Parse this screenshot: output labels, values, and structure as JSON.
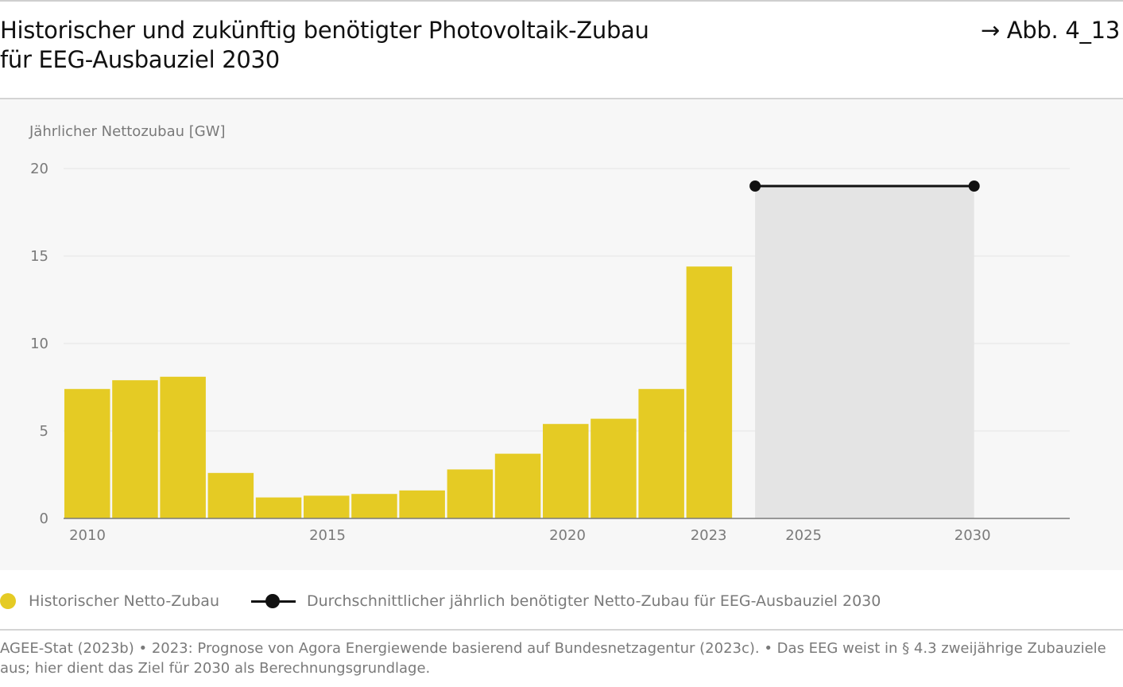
{
  "header": {
    "title": "Historischer und zukünftig benötigter Photovoltaik-Zubau\nfür EEG-Ausbauziel 2030",
    "figure_ref": "→ Abb. 4_13"
  },
  "legend": {
    "historic_label": "Historischer Netto-Zubau",
    "target_label": "Durchschnittlicher jährlich benötigter Netto-Zubau für EEG-Ausbauziel 2030"
  },
  "source": "AGEE-Stat (2023b) • 2023: Prognose von Agora Energiewende basierend auf Bundesnetzagentur (2023c). • Das EEG weist in § 4.3 zweijährige Zubauziele aus; hier dient das Ziel für 2030 als Berechnungsgrundlage.",
  "colors": {
    "bar": "#e5cb24",
    "target_line": "#111111",
    "target_area": "#e4e4e4",
    "panel": "#f7f7f7",
    "grid": "#ececec",
    "axis": "#7a7a7a"
  },
  "chart_data": {
    "type": "bar",
    "ylabel": "Jährlicher Nettozubau [GW]",
    "ylim": [
      0,
      20
    ],
    "yticks": [
      0,
      5,
      10,
      15,
      20
    ],
    "grid": true,
    "legend_position": "bottom",
    "xticks": [
      "2010",
      "2015",
      "2020",
      "2023",
      "2025",
      "2030"
    ],
    "series": [
      {
        "name": "Historischer Netto-Zubau",
        "x": [
          2010,
          2011,
          2012,
          2013,
          2014,
          2015,
          2016,
          2017,
          2018,
          2019,
          2020,
          2021,
          2022,
          2023
        ],
        "values": [
          7.4,
          7.9,
          8.1,
          2.6,
          1.2,
          1.3,
          1.4,
          1.6,
          2.8,
          3.7,
          5.4,
          5.7,
          7.4,
          14.4
        ]
      },
      {
        "name": "Durchschnittlicher jährlich benötigter Netto-Zubau für EEG-Ausbauziel 2030",
        "x": [
          2024,
          2030
        ],
        "values": [
          19,
          19
        ]
      }
    ]
  }
}
